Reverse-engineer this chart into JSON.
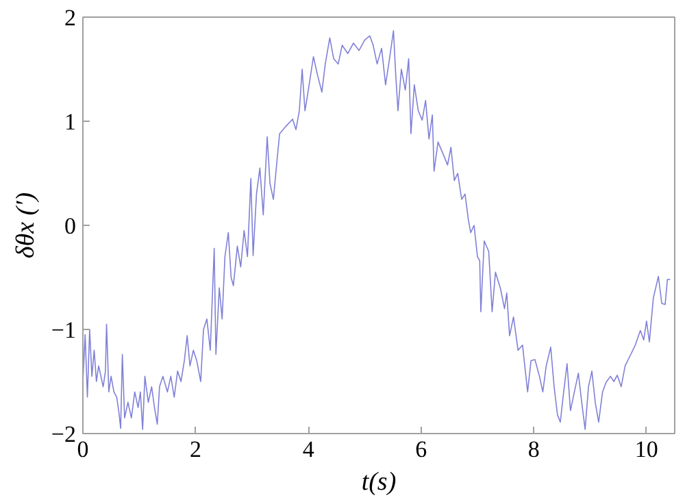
{
  "chart_data": {
    "type": "line",
    "xlabel": "t(s)",
    "ylabel": "δθx (′)",
    "xlim": [
      0,
      10.5
    ],
    "ylim": [
      -2,
      2
    ],
    "xticks": [
      0,
      2,
      4,
      6,
      8,
      10
    ],
    "yticks": [
      -2,
      -1,
      0,
      1,
      2
    ],
    "grid": false,
    "x": [
      0.0,
      0.04,
      0.08,
      0.12,
      0.16,
      0.2,
      0.24,
      0.28,
      0.32,
      0.36,
      0.4,
      0.42,
      0.46,
      0.5,
      0.55,
      0.6,
      0.64,
      0.67,
      0.7,
      0.74,
      0.8,
      0.86,
      0.92,
      0.98,
      1.02,
      1.06,
      1.1,
      1.16,
      1.22,
      1.27,
      1.32,
      1.36,
      1.42,
      1.5,
      1.56,
      1.62,
      1.68,
      1.74,
      1.8,
      1.85,
      1.9,
      1.96,
      2.02,
      2.09,
      2.14,
      2.2,
      2.26,
      2.33,
      2.36,
      2.42,
      2.47,
      2.52,
      2.58,
      2.63,
      2.67,
      2.74,
      2.8,
      2.86,
      2.92,
      2.98,
      3.02,
      3.08,
      3.14,
      3.2,
      3.27,
      3.32,
      3.38,
      3.44,
      3.49,
      3.6,
      3.72,
      3.78,
      3.84,
      3.89,
      3.94,
      4.0,
      4.09,
      4.16,
      4.24,
      4.3,
      4.38,
      4.45,
      4.53,
      4.6,
      4.7,
      4.8,
      4.9,
      5.0,
      5.09,
      5.15,
      5.22,
      5.3,
      5.37,
      5.44,
      5.51,
      5.55,
      5.59,
      5.65,
      5.72,
      5.78,
      5.82,
      5.88,
      5.95,
      6.02,
      6.08,
      6.14,
      6.2,
      6.23,
      6.3,
      6.38,
      6.47,
      6.53,
      6.59,
      6.65,
      6.72,
      6.78,
      6.84,
      6.88,
      6.94,
      7.0,
      7.04,
      7.06,
      7.12,
      7.2,
      7.26,
      7.32,
      7.41,
      7.48,
      7.52,
      7.57,
      7.64,
      7.72,
      7.8,
      7.89,
      7.95,
      8.02,
      8.1,
      8.16,
      8.22,
      8.3,
      8.36,
      8.42,
      8.47,
      8.53,
      8.59,
      8.65,
      8.72,
      8.79,
      8.85,
      8.91,
      8.97,
      9.03,
      9.09,
      9.15,
      9.22,
      9.28,
      9.36,
      9.42,
      9.48,
      9.55,
      9.62,
      9.72,
      9.8,
      9.89,
      9.95,
      10.0,
      10.05,
      10.12,
      10.21,
      10.27,
      10.33,
      10.37,
      10.42
    ],
    "series": [
      {
        "color": "#8080d8",
        "values": [
          -1.5,
          -1.05,
          -1.65,
          -1.0,
          -1.45,
          -1.2,
          -1.5,
          -1.35,
          -1.45,
          -1.55,
          -1.4,
          -0.95,
          -1.6,
          -1.45,
          -1.6,
          -1.65,
          -1.8,
          -1.95,
          -1.24,
          -1.85,
          -1.7,
          -1.85,
          -1.6,
          -1.75,
          -1.6,
          -1.96,
          -1.45,
          -1.7,
          -1.55,
          -1.75,
          -1.91,
          -1.55,
          -1.45,
          -1.6,
          -1.45,
          -1.65,
          -1.4,
          -1.5,
          -1.3,
          -1.06,
          -1.35,
          -1.2,
          -1.3,
          -1.5,
          -1.0,
          -0.9,
          -1.2,
          -0.22,
          -1.24,
          -0.6,
          -0.9,
          -0.3,
          -0.07,
          -0.5,
          -0.58,
          -0.2,
          -0.4,
          -0.05,
          -0.3,
          0.45,
          -0.29,
          0.3,
          0.55,
          0.1,
          0.85,
          0.4,
          0.25,
          0.6,
          0.88,
          0.95,
          1.02,
          0.92,
          1.1,
          1.5,
          1.1,
          1.3,
          1.62,
          1.45,
          1.28,
          1.55,
          1.8,
          1.6,
          1.55,
          1.73,
          1.65,
          1.75,
          1.68,
          1.78,
          1.82,
          1.73,
          1.55,
          1.7,
          1.35,
          1.6,
          1.87,
          1.45,
          1.1,
          1.5,
          1.3,
          1.6,
          0.88,
          1.35,
          1.1,
          1.01,
          1.2,
          0.83,
          1.06,
          0.52,
          0.8,
          0.7,
          0.58,
          0.75,
          0.43,
          0.5,
          0.25,
          0.3,
          0.05,
          -0.07,
          0.0,
          -0.3,
          -0.34,
          -0.83,
          -0.15,
          -0.25,
          -0.83,
          -0.45,
          -0.61,
          -0.8,
          -0.65,
          -1.06,
          -0.88,
          -1.2,
          -1.15,
          -1.6,
          -1.3,
          -1.29,
          -1.45,
          -1.6,
          -1.35,
          -1.17,
          -1.55,
          -1.82,
          -1.89,
          -1.6,
          -1.33,
          -1.78,
          -1.6,
          -1.42,
          -1.7,
          -1.96,
          -1.55,
          -1.4,
          -1.7,
          -1.89,
          -1.6,
          -1.51,
          -1.45,
          -1.5,
          -1.44,
          -1.55,
          -1.35,
          -1.24,
          -1.15,
          -1.01,
          -1.1,
          -0.92,
          -1.12,
          -0.7,
          -0.49,
          -0.75,
          -0.76,
          -0.52,
          -0.52
        ]
      }
    ]
  }
}
